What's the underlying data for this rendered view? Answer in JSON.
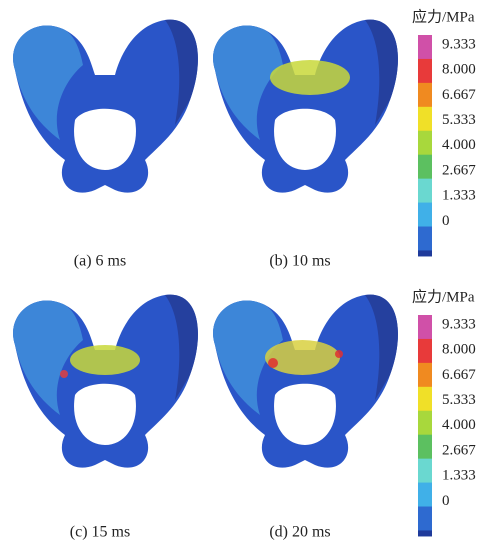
{
  "panels": [
    {
      "caption": "(a) 6 ms"
    },
    {
      "caption": "(b) 10 ms"
    },
    {
      "caption": "(c) 15 ms"
    },
    {
      "caption": "(d) 20 ms"
    }
  ],
  "colorbars": [
    {
      "title": "应力/MPa",
      "labels": [
        "9.333",
        "8.000",
        "6.667",
        "5.333",
        "4.000",
        "2.667",
        "1.333",
        "0"
      ]
    },
    {
      "title": "应力/MPa",
      "labels": [
        "9.333",
        "8.000",
        "6.667",
        "5.333",
        "4.000",
        "2.667",
        "1.333",
        "0"
      ]
    }
  ]
}
